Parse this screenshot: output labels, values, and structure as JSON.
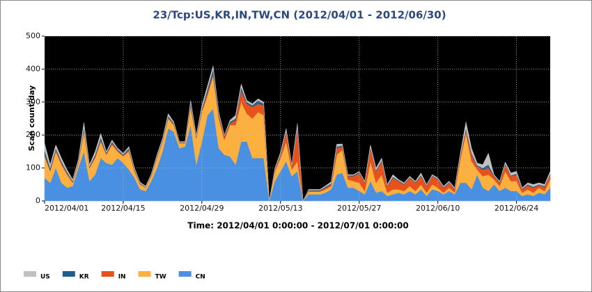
{
  "chart_data": {
    "type": "stacked-area",
    "title": "23/Tcp:US,KR,IN,TW,CN (2012/04/01 - 2012/06/30)",
    "ylabel": "Scan count/day",
    "xlabel": "Time: 2012/04/01 0:00:00 - 2012/07/01 0:00:00",
    "x": [
      "2012/04/01",
      "2012/04/02",
      "2012/04/03",
      "2012/04/04",
      "2012/04/05",
      "2012/04/06",
      "2012/04/07",
      "2012/04/08",
      "2012/04/09",
      "2012/04/10",
      "2012/04/11",
      "2012/04/12",
      "2012/04/13",
      "2012/04/14",
      "2012/04/15",
      "2012/04/16",
      "2012/04/17",
      "2012/04/18",
      "2012/04/19",
      "2012/04/20",
      "2012/04/21",
      "2012/04/22",
      "2012/04/23",
      "2012/04/24",
      "2012/04/25",
      "2012/04/26",
      "2012/04/27",
      "2012/04/28",
      "2012/04/29",
      "2012/04/30",
      "2012/05/01",
      "2012/05/02",
      "2012/05/03",
      "2012/05/04",
      "2012/05/05",
      "2012/05/06",
      "2012/05/07",
      "2012/05/08",
      "2012/05/09",
      "2012/05/10",
      "2012/05/11",
      "2012/05/12",
      "2012/05/13",
      "2012/05/14",
      "2012/05/15",
      "2012/05/16",
      "2012/05/17",
      "2012/05/18",
      "2012/05/19",
      "2012/05/20",
      "2012/05/21",
      "2012/05/22",
      "2012/05/23",
      "2012/05/24",
      "2012/05/25",
      "2012/05/26",
      "2012/05/27",
      "2012/05/28",
      "2012/05/29",
      "2012/05/30",
      "2012/05/31",
      "2012/06/01",
      "2012/06/02",
      "2012/06/03",
      "2012/06/04",
      "2012/06/05",
      "2012/06/06",
      "2012/06/07",
      "2012/06/08",
      "2012/06/09",
      "2012/06/10",
      "2012/06/11",
      "2012/06/12",
      "2012/06/13",
      "2012/06/14",
      "2012/06/15",
      "2012/06/16",
      "2012/06/17",
      "2012/06/18",
      "2012/06/19",
      "2012/06/20",
      "2012/06/21",
      "2012/06/22",
      "2012/06/23",
      "2012/06/24",
      "2012/06/25",
      "2012/06/26",
      "2012/06/27",
      "2012/06/28",
      "2012/06/29",
      "2012/06/30"
    ],
    "series": [
      {
        "name": "US",
        "color": "#c0c0c0",
        "values": [
          20,
          10,
          10,
          10,
          7,
          5,
          5,
          15,
          5,
          10,
          12,
          4,
          5,
          4,
          4,
          5,
          4,
          3,
          3,
          3,
          5,
          5,
          7,
          4,
          2,
          2,
          7,
          4,
          10,
          10,
          10,
          5,
          2,
          5,
          10,
          10,
          5,
          5,
          5,
          5,
          0,
          3,
          5,
          7,
          3,
          10,
          0,
          2,
          2,
          2,
          3,
          5,
          7,
          5,
          3,
          2,
          2,
          3,
          7,
          7,
          7,
          3,
          7,
          3,
          3,
          3,
          3,
          7,
          3,
          3,
          3,
          3,
          3,
          3,
          7,
          20,
          15,
          7,
          10,
          35,
          3,
          3,
          5,
          8,
          7,
          3,
          5,
          7,
          5,
          5,
          7
        ]
      },
      {
        "name": "KR",
        "color": "#1f5f8b",
        "values": [
          15,
          7,
          5,
          5,
          5,
          3,
          3,
          8,
          3,
          5,
          8,
          3,
          5,
          3,
          3,
          5,
          3,
          2,
          1,
          2,
          3,
          3,
          5,
          3,
          1,
          1,
          8,
          3,
          5,
          10,
          15,
          5,
          3,
          5,
          5,
          10,
          5,
          5,
          10,
          5,
          0,
          2,
          3,
          3,
          2,
          5,
          0,
          2,
          2,
          2,
          3,
          3,
          5,
          3,
          2,
          3,
          3,
          2,
          3,
          3,
          3,
          2,
          3,
          2,
          2,
          2,
          2,
          3,
          2,
          2,
          2,
          2,
          2,
          2,
          3,
          5,
          5,
          3,
          5,
          10,
          2,
          2,
          3,
          2,
          3,
          2,
          3,
          3,
          2,
          3,
          3
        ]
      },
      {
        "name": "IN",
        "color": "#e8501c",
        "values": [
          5,
          3,
          5,
          5,
          3,
          2,
          2,
          5,
          2,
          5,
          5,
          3,
          5,
          3,
          3,
          5,
          3,
          2,
          1,
          2,
          2,
          2,
          3,
          3,
          2,
          2,
          5,
          3,
          5,
          10,
          5,
          10,
          10,
          5,
          15,
          35,
          30,
          35,
          25,
          30,
          0,
          5,
          10,
          30,
          10,
          100,
          0,
          3,
          3,
          3,
          5,
          5,
          20,
          10,
          10,
          15,
          30,
          25,
          40,
          35,
          40,
          20,
          35,
          25,
          20,
          25,
          25,
          25,
          20,
          25,
          25,
          15,
          15,
          10,
          10,
          10,
          20,
          10,
          20,
          20,
          10,
          10,
          20,
          15,
          20,
          10,
          12,
          15,
          8,
          12,
          15
        ]
      },
      {
        "name": "TW",
        "color": "#fbb040",
        "values": [
          65,
          35,
          50,
          55,
          40,
          10,
          15,
          60,
          40,
          50,
          50,
          25,
          60,
          20,
          20,
          55,
          20,
          15,
          10,
          15,
          30,
          30,
          30,
          20,
          15,
          10,
          55,
          80,
          90,
          60,
          100,
          90,
          45,
          95,
          120,
          120,
          85,
          120,
          140,
          130,
          0,
          30,
          40,
          60,
          20,
          30,
          0,
          8,
          8,
          8,
          10,
          10,
          60,
          70,
          25,
          20,
          25,
          10,
          60,
          30,
          50,
          10,
          15,
          10,
          10,
          15,
          10,
          15,
          10,
          15,
          10,
          5,
          10,
          5,
          70,
          150,
          85,
          15,
          35,
          50,
          15,
          15,
          50,
          30,
          30,
          10,
          15,
          10,
          15,
          10,
          25
        ]
      },
      {
        "name": "CN",
        "color": "#4a90e2",
        "values": [
          70,
          55,
          100,
          55,
          40,
          45,
          100,
          150,
          60,
          80,
          130,
          115,
          110,
          130,
          115,
          95,
          70,
          35,
          30,
          60,
          100,
          150,
          220,
          210,
          160,
          165,
          230,
          110,
          180,
          260,
          280,
          160,
          140,
          135,
          110,
          180,
          180,
          130,
          130,
          130,
          0,
          60,
          90,
          120,
          75,
          90,
          0,
          20,
          20,
          20,
          25,
          35,
          80,
          85,
          40,
          40,
          30,
          20,
          60,
          25,
          30,
          15,
          20,
          25,
          20,
          30,
          20,
          35,
          15,
          35,
          30,
          20,
          30,
          20,
          55,
          55,
          35,
          80,
          40,
          30,
          50,
          30,
          40,
          30,
          30,
          15,
          20,
          15,
          25,
          20,
          40
        ]
      }
    ],
    "ylim": [
      0,
      500
    ],
    "yticks": [
      0,
      100,
      200,
      300,
      400,
      500
    ],
    "xticks": [
      "2012/04/01",
      "2012/04/15",
      "2012/04/29",
      "2012/05/13",
      "2012/05/27",
      "2012/06/10",
      "2012/06/24"
    ],
    "grid": true,
    "legend": "bottom-left"
  }
}
